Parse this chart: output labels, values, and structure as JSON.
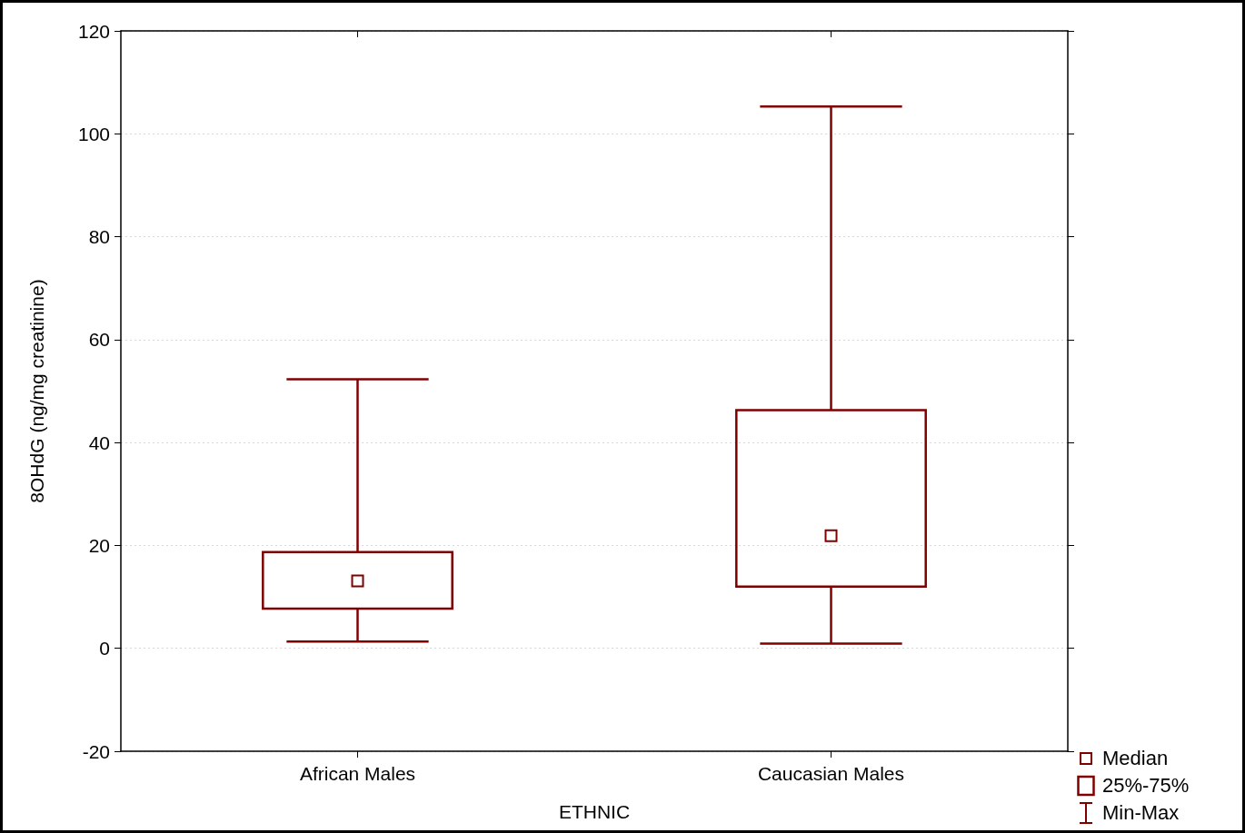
{
  "chart_data": {
    "type": "box",
    "xlabel": "ETHNIC",
    "ylabel": "8OHdG (ng/mg creatinine)",
    "categories": [
      "African Males",
      "Caucasian Males"
    ],
    "boxes": [
      {
        "low": 1.3,
        "q1": 7.7,
        "median": 13.1,
        "q3": 18.7,
        "high": 52.3
      },
      {
        "low": 0.9,
        "q1": 12.0,
        "median": 21.9,
        "q3": 46.3,
        "high": 105.3
      }
    ],
    "color": "#800000",
    "ylim": [
      -20,
      120
    ],
    "yticks": [
      -20,
      0,
      20,
      40,
      60,
      80,
      100,
      120
    ],
    "grid": "y",
    "annotations": [
      "Median",
      "25%-75%",
      "Min-Max"
    ]
  }
}
